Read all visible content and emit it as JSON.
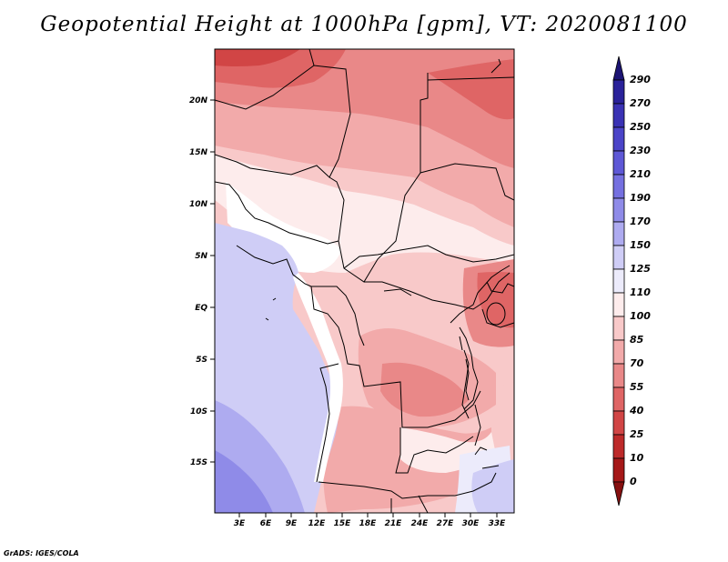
{
  "title": "Geopotential Height at 1000hPa [gpm], VT: 2020081100",
  "credit": "GrADS: IGES/COLA",
  "map": {
    "lat_ticks": [
      "20N",
      "15N",
      "10N",
      "5N",
      "EQ",
      "5S",
      "10S",
      "15S"
    ],
    "lon_ticks": [
      "3E",
      "6E",
      "9E",
      "12E",
      "15E",
      "18E",
      "21E",
      "24E",
      "27E",
      "30E",
      "33E"
    ]
  },
  "colorbar": {
    "labels": [
      "290",
      "270",
      "250",
      "230",
      "210",
      "190",
      "170",
      "150",
      "125",
      "110",
      "100",
      "85",
      "70",
      "55",
      "40",
      "25",
      "10",
      "0"
    ],
    "colors": [
      "#1c1474",
      "#2a229a",
      "#3a32b4",
      "#4b44c8",
      "#5e58d6",
      "#7570e0",
      "#8f8be8",
      "#aeabf0",
      "#cfcdf6",
      "#ecebfb",
      "#fdecec",
      "#f8c9c9",
      "#f2aaaa",
      "#e98888",
      "#df6565",
      "#d14545",
      "#bd2a2a",
      "#a51818",
      "#861010"
    ]
  }
}
